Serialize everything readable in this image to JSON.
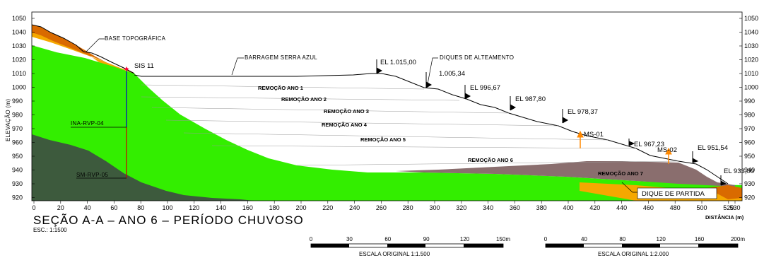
{
  "axes": {
    "ylabel": "ELEVAÇÃO (m)",
    "xlabel": "DISTÂNCIA (m)",
    "y_ticks": [
      "1050",
      "1040",
      "1030",
      "1020",
      "1010",
      "1000",
      "990",
      "980",
      "970",
      "960",
      "950",
      "940",
      "930",
      "920"
    ],
    "x_ticks": [
      "0",
      "20",
      "40",
      "60",
      "80",
      "100",
      "120",
      "140",
      "160",
      "180",
      "200",
      "220",
      "240",
      "260",
      "280",
      "300",
      "320",
      "340",
      "360",
      "380",
      "400",
      "420",
      "440",
      "460",
      "480",
      "500",
      "520",
      "530"
    ]
  },
  "labels": {
    "base_topografica": "BASE TOPOGRÁFICA",
    "barragem": "BARRAGEM SERRA AZUL",
    "diques": "DIQUES DE ALTEAMENTO",
    "sis11": "SIS 11",
    "ina": "INA-RVP-04",
    "sm": "SM-RVP-05",
    "ms01": "MS-01",
    "ms02": "MS-02",
    "dique_partida": "DIQUE DE PARTIDA",
    "removals": [
      "REMOÇÃO ANO 1",
      "REMOÇÃO ANO 2",
      "REMOÇÃO ANO 3",
      "REMOÇÃO ANO 4",
      "REMOÇÃO ANO 5",
      "REMOÇÃO ANO 6",
      "REMOÇÃO ANO 7"
    ]
  },
  "elevations": [
    "1.015,00",
    "1.005,34",
    "996,67",
    "987,80",
    "978,37",
    "967,23",
    "951,54",
    "933,00"
  ],
  "title": "SEÇÃO A-A  –  ANO 6  –  PERÍODO CHUVOSO",
  "scale_note": "ESC.: 1:1500",
  "scale_bars": [
    {
      "ticks": [
        "0",
        "30",
        "60",
        "90",
        "120",
        "150m"
      ],
      "caption": "ESCALA ORIGINAL 1:1.500"
    },
    {
      "ticks": [
        "0",
        "40",
        "80",
        "120",
        "160",
        "200m"
      ],
      "caption": "ESCALA ORIGINAL 1:2.000"
    }
  ],
  "colors": {
    "green": "#33ee00",
    "dark_green": "#3d5a3d",
    "orange": "#f5a800",
    "dark_orange": "#d96a00",
    "mauve": "#8a6e6e",
    "arrow": "#ff8800"
  }
}
